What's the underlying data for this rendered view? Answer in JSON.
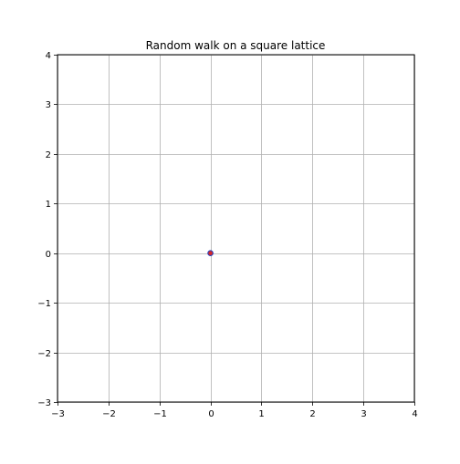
{
  "chart_data": {
    "type": "scatter",
    "title": "Random walk on a square lattice",
    "xlabel": "",
    "ylabel": "",
    "xlim": [
      -3,
      4
    ],
    "ylim": [
      -3,
      4
    ],
    "xticks": [
      -3,
      -2,
      -1,
      0,
      1,
      2,
      3,
      4
    ],
    "yticks": [
      -3,
      -2,
      -1,
      0,
      1,
      2,
      3,
      4
    ],
    "xtick_labels": [
      "−3",
      "−2",
      "−1",
      "0",
      "1",
      "2",
      "3",
      "4"
    ],
    "ytick_labels": [
      "−3",
      "−2",
      "−1",
      "0",
      "1",
      "2",
      "3",
      "4"
    ],
    "grid": true,
    "grid_color": "#b0b0b0",
    "marker_edge_color": "#1f3fbf",
    "marker_fill_color": "#d62728",
    "points": [
      {
        "x": 0,
        "y": 0
      }
    ]
  }
}
